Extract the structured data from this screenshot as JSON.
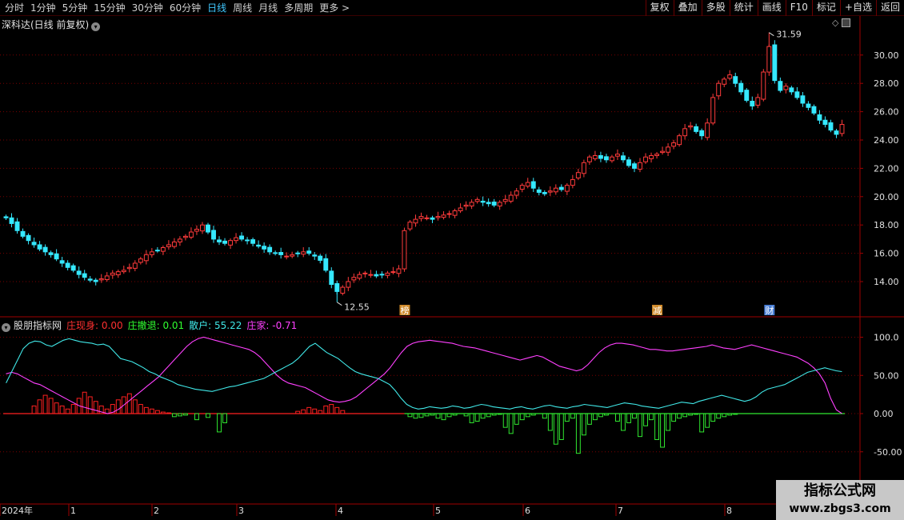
{
  "toolbar": {
    "periods": [
      "分时",
      "1分钟",
      "5分钟",
      "15分钟",
      "30分钟",
      "60分钟",
      "日线",
      "周线",
      "月线",
      "多周期",
      "更多 >"
    ],
    "active_period": "日线",
    "right_buttons": [
      "复权",
      "叠加",
      "多股",
      "统计",
      "画线",
      "F10",
      "标记",
      "+自选",
      "返回"
    ]
  },
  "price_panel": {
    "title": "深科达(日线 前复权)",
    "y_ticks": [
      "30.00",
      "28.00",
      "26.00",
      "24.00",
      "22.00",
      "20.00",
      "18.00",
      "16.00",
      "14.00"
    ],
    "high_label": "31.59",
    "low_label": "12.55",
    "event_tags": [
      {
        "text": "榜",
        "color": "#d08a2a"
      },
      {
        "text": "减",
        "color": "#d08a2a"
      },
      {
        "text": "财",
        "color": "#4a7fd6"
      }
    ]
  },
  "indicator_panel": {
    "name": "股朋指标网",
    "lines": [
      {
        "label": "庄现身: 0.00",
        "color": "#ff3030"
      },
      {
        "label": "庄撤退: 0.01",
        "color": "#30ff30"
      },
      {
        "label": "散户: 55.22",
        "color": "#40e8e8"
      },
      {
        "label": "庄家: -0.71",
        "color": "#ff40ff"
      }
    ],
    "y_ticks": [
      "100.0",
      "50.00",
      "0.00",
      "-50.00"
    ]
  },
  "time_axis": {
    "labels": [
      "2024年",
      "1",
      "2",
      "3",
      "4",
      "5",
      "6",
      "7",
      "8"
    ]
  },
  "watermark": {
    "line1": "指标公式网",
    "line2": "www.zbgs3.com"
  },
  "colors": {
    "up": "#ff3b3b",
    "down": "#35e8ff",
    "grid": "#7a0000",
    "axis_text": "#e0e0e0"
  },
  "chart_data": {
    "type": "candlestick",
    "price_axis": {
      "min": 12,
      "max": 32,
      "ticks": [
        14,
        16,
        18,
        20,
        22,
        24,
        26,
        28,
        30
      ]
    },
    "indicator_axis": {
      "min": -60,
      "max": 110,
      "ticks": [
        100,
        50,
        0,
        -50
      ]
    },
    "closes": [
      18.5,
      18.1,
      17.6,
      17.2,
      16.9,
      16.6,
      16.3,
      16.1,
      15.9,
      15.6,
      15.3,
      15.0,
      14.8,
      14.5,
      14.3,
      14.1,
      14.0,
      14.2,
      14.4,
      14.6,
      14.7,
      14.8,
      15.0,
      15.3,
      15.6,
      15.9,
      16.1,
      16.2,
      16.4,
      16.6,
      16.8,
      17.0,
      17.2,
      17.5,
      17.7,
      18.0,
      17.5,
      17.0,
      16.8,
      16.7,
      16.9,
      17.1,
      17.0,
      16.9,
      16.7,
      16.5,
      16.3,
      16.1,
      16.0,
      15.9,
      15.8,
      15.9,
      16.0,
      16.1,
      16.0,
      15.8,
      15.5,
      14.8,
      13.8,
      13.3,
      13.6,
      14.0,
      14.3,
      14.5,
      14.6,
      14.5,
      14.4,
      14.5,
      14.6,
      14.7,
      14.9,
      17.6,
      18.2,
      18.4,
      18.6,
      18.5,
      18.4,
      18.6,
      18.7,
      18.8,
      19.0,
      19.2,
      19.4,
      19.6,
      19.8,
      19.6,
      19.5,
      19.4,
      19.6,
      19.8,
      20.1,
      20.4,
      20.8,
      21.0,
      20.6,
      20.3,
      20.2,
      20.4,
      20.6,
      20.5,
      20.8,
      21.2,
      21.7,
      22.4,
      22.8,
      22.9,
      22.7,
      22.6,
      22.8,
      23.0,
      22.6,
      22.2,
      22.0,
      22.4,
      22.8,
      22.9,
      23.0,
      23.2,
      23.5,
      23.8,
      24.3,
      24.8,
      25.0,
      24.6,
      24.3,
      25.2,
      27.0,
      28.0,
      28.3,
      28.6,
      28.0,
      27.4,
      26.8,
      26.4,
      27.0,
      28.8,
      30.6,
      28.2,
      27.5,
      27.8,
      27.4,
      27.0,
      26.6,
      26.3,
      25.9,
      25.4,
      25.1,
      24.7,
      24.4,
      25.1
    ],
    "retail_line": [
      40,
      55,
      70,
      85,
      92,
      95,
      94,
      90,
      88,
      92,
      96,
      98,
      96,
      94,
      93,
      92,
      90,
      91,
      88,
      80,
      72,
      70,
      68,
      64,
      60,
      55,
      52,
      48,
      45,
      42,
      38,
      36,
      34,
      32,
      31,
      30,
      29,
      31,
      33,
      35,
      36,
      38,
      40,
      42,
      44,
      46,
      50,
      54,
      58,
      62,
      66,
      72,
      80,
      88,
      92,
      86,
      80,
      76,
      72,
      66,
      60,
      55,
      52,
      50,
      48,
      46,
      42,
      38,
      30,
      20,
      12,
      8,
      6,
      7,
      9,
      8,
      7,
      8,
      10,
      9,
      7,
      8,
      10,
      12,
      11,
      9,
      8,
      7,
      6,
      8,
      9,
      7,
      6,
      8,
      10,
      11,
      9,
      8,
      7,
      9,
      10,
      12,
      11,
      10,
      9,
      8,
      10,
      12,
      14,
      13,
      12,
      10,
      9,
      8,
      7,
      9,
      11,
      13,
      15,
      14,
      13,
      16,
      18,
      20,
      22,
      24,
      22,
      20,
      18,
      16,
      18,
      22,
      28,
      32,
      34,
      36,
      38,
      42,
      46,
      50,
      54,
      56,
      58,
      60,
      58,
      56,
      55
    ],
    "banker_line": [
      52,
      54,
      52,
      48,
      44,
      40,
      38,
      34,
      30,
      26,
      22,
      18,
      14,
      10,
      8,
      6,
      4,
      2,
      0,
      2,
      6,
      12,
      18,
      24,
      30,
      36,
      42,
      48,
      56,
      64,
      72,
      80,
      88,
      94,
      98,
      100,
      98,
      96,
      94,
      92,
      90,
      88,
      86,
      84,
      80,
      74,
      66,
      58,
      50,
      44,
      40,
      38,
      36,
      34,
      30,
      26,
      22,
      18,
      16,
      15,
      16,
      18,
      22,
      28,
      34,
      40,
      46,
      52,
      60,
      70,
      80,
      88,
      92,
      94,
      95,
      96,
      95,
      94,
      93,
      92,
      90,
      88,
      87,
      86,
      84,
      82,
      80,
      78,
      76,
      74,
      72,
      70,
      72,
      74,
      76,
      74,
      70,
      66,
      62,
      60,
      58,
      56,
      58,
      64,
      72,
      80,
      86,
      90,
      92,
      92,
      91,
      90,
      88,
      86,
      84,
      84,
      83,
      82,
      82,
      83,
      84,
      85,
      86,
      87,
      88,
      90,
      88,
      86,
      85,
      84,
      86,
      88,
      90,
      88,
      86,
      84,
      82,
      80,
      78,
      76,
      74,
      70,
      66,
      60,
      52,
      40,
      20,
      5,
      0
    ],
    "banker_appear_bars": [
      0,
      0,
      0,
      10,
      18,
      24,
      20,
      14,
      10,
      6,
      12,
      20,
      28,
      22,
      16,
      10,
      6,
      12,
      18,
      22,
      26,
      18,
      12,
      8,
      6,
      4,
      2,
      1
    ],
    "banker_exit_bars_start": 72,
    "banker_exit_bars": [
      4,
      6,
      5,
      3,
      2,
      6,
      8,
      4,
      2,
      0,
      3,
      12,
      10,
      6,
      4,
      2,
      1,
      18,
      26,
      14,
      8,
      4,
      2,
      0,
      6,
      22,
      40,
      34,
      10,
      6,
      52,
      28,
      14,
      8,
      4,
      2,
      0,
      10,
      22,
      12,
      6,
      30,
      16,
      8,
      34,
      44,
      22,
      10,
      6,
      4,
      2,
      1,
      24,
      18,
      10,
      6,
      4,
      2,
      1,
      0
    ]
  }
}
